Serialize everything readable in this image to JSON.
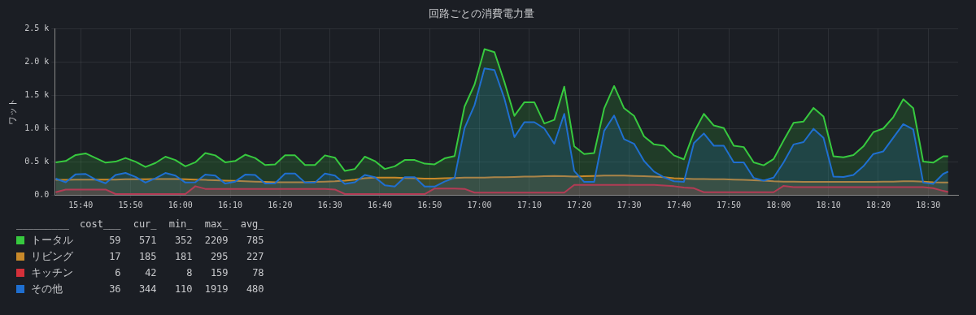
{
  "chart_data": {
    "type": "area",
    "title": "回路ごとの消費電力量",
    "ylabel": "ワット",
    "x": [
      15.5833,
      15.6167,
      15.65,
      15.6833,
      15.7167,
      15.75,
      15.7833,
      15.8167,
      15.85,
      15.8833,
      15.9167,
      15.95,
      15.9833,
      16.0167,
      16.05,
      16.0833,
      16.1167,
      16.15,
      16.1833,
      16.2167,
      16.25,
      16.2833,
      16.3167,
      16.35,
      16.3833,
      16.4167,
      16.45,
      16.4833,
      16.5167,
      16.55,
      16.5833,
      16.6167,
      16.65,
      16.6833,
      16.7167,
      16.75,
      16.7833,
      16.8167,
      16.85,
      16.8833,
      16.9167,
      16.95,
      16.9833,
      17.0167,
      17.05,
      17.0833,
      17.1167,
      17.15,
      17.1833,
      17.2167,
      17.25,
      17.2833,
      17.3167,
      17.35,
      17.3833,
      17.4167,
      17.45,
      17.4833,
      17.5167,
      17.55,
      17.5833,
      17.6167,
      17.65,
      17.6833,
      17.7167,
      17.75,
      17.7833,
      17.8167,
      17.85,
      17.8833,
      17.9167,
      17.95,
      17.9833,
      18.0167,
      18.05,
      18.0833,
      18.1167,
      18.15,
      18.1833,
      18.2167,
      18.25,
      18.2833,
      18.3167,
      18.35,
      18.3833,
      18.4167,
      18.45,
      18.4833,
      18.5167,
      18.55,
      18.5667
    ],
    "series": [
      {
        "name": "トータル",
        "color": "#37c93f",
        "values": [
          490,
          510,
          600,
          625,
          555,
          485,
          500,
          555,
          500,
          420,
          480,
          575,
          525,
          430,
          490,
          630,
          595,
          490,
          510,
          605,
          555,
          450,
          460,
          595,
          595,
          450,
          450,
          595,
          560,
          360,
          390,
          575,
          510,
          390,
          430,
          525,
          525,
          470,
          460,
          550,
          585,
          1330,
          1660,
          2195,
          2150,
          1700,
          1190,
          1395,
          1395,
          1075,
          1130,
          1630,
          730,
          615,
          630,
          1300,
          1640,
          1305,
          1190,
          880,
          760,
          740,
          595,
          535,
          940,
          1220,
          1045,
          1005,
          740,
          720,
          490,
          445,
          540,
          820,
          1085,
          1105,
          1310,
          1180,
          580,
          565,
          600,
          730,
          945,
          1000,
          1170,
          1440,
          1305,
          500,
          485,
          580,
          580
        ]
      },
      {
        "name": "リビング",
        "color": "#c8892a",
        "values": [
          225,
          225,
          230,
          230,
          230,
          230,
          230,
          235,
          235,
          235,
          240,
          240,
          240,
          235,
          230,
          225,
          220,
          215,
          210,
          205,
          200,
          195,
          190,
          190,
          190,
          190,
          195,
          200,
          205,
          215,
          230,
          250,
          260,
          260,
          260,
          255,
          250,
          245,
          245,
          250,
          255,
          260,
          260,
          260,
          265,
          265,
          270,
          275,
          275,
          280,
          285,
          280,
          275,
          280,
          285,
          290,
          290,
          290,
          285,
          280,
          275,
          265,
          250,
          245,
          240,
          240,
          235,
          235,
          230,
          225,
          220,
          215,
          205,
          200,
          200,
          195,
          195,
          195,
          195,
          195,
          195,
          195,
          195,
          200,
          200,
          205,
          205,
          200,
          190,
          185,
          185
        ]
      },
      {
        "name": "キッチン",
        "color": "#d4303a",
        "values": [
          40,
          80,
          80,
          80,
          80,
          80,
          12,
          12,
          12,
          12,
          12,
          12,
          12,
          12,
          130,
          90,
          90,
          90,
          90,
          90,
          90,
          90,
          90,
          90,
          90,
          90,
          90,
          90,
          80,
          12,
          12,
          12,
          12,
          12,
          12,
          12,
          12,
          12,
          95,
          95,
          95,
          90,
          33,
          33,
          33,
          33,
          33,
          33,
          33,
          33,
          33,
          33,
          150,
          150,
          150,
          150,
          150,
          150,
          150,
          150,
          150,
          140,
          130,
          110,
          100,
          40,
          40,
          40,
          40,
          40,
          40,
          40,
          40,
          135,
          115,
          115,
          115,
          115,
          115,
          115,
          115,
          115,
          115,
          115,
          115,
          115,
          115,
          115,
          100,
          60,
          42
        ]
      },
      {
        "name": "その他",
        "color": "#1f6fd0",
        "values": [
          245,
          190,
          310,
          315,
          230,
          175,
          300,
          330,
          270,
          185,
          250,
          330,
          290,
          185,
          190,
          305,
          290,
          170,
          200,
          305,
          300,
          170,
          175,
          320,
          320,
          185,
          185,
          320,
          290,
          165,
          190,
          300,
          265,
          145,
          125,
          265,
          265,
          125,
          125,
          200,
          255,
          1005,
          1350,
          1905,
          1880,
          1450,
          870,
          1095,
          1095,
          1000,
          770,
          1220,
          360,
          195,
          195,
          965,
          1195,
          840,
          770,
          510,
          350,
          265,
          205,
          195,
          780,
          925,
          740,
          740,
          490,
          490,
          255,
          215,
          260,
          490,
          760,
          795,
          995,
          860,
          275,
          270,
          300,
          430,
          615,
          655,
          860,
          1065,
          985,
          185,
          165,
          315,
          350
        ]
      }
    ],
    "xlim": [
      15.58,
      18.6
    ],
    "xticks": [
      {
        "value": 15.6667,
        "label": "15:40"
      },
      {
        "value": 15.8333,
        "label": "15:50"
      },
      {
        "value": 16,
        "label": "16:00"
      },
      {
        "value": 16.1667,
        "label": "16:10"
      },
      {
        "value": 16.3333,
        "label": "16:20"
      },
      {
        "value": 16.5,
        "label": "16:30"
      },
      {
        "value": 16.6667,
        "label": "16:40"
      },
      {
        "value": 16.8333,
        "label": "16:50"
      },
      {
        "value": 17,
        "label": "17:00"
      },
      {
        "value": 17.1667,
        "label": "17:10"
      },
      {
        "value": 17.3333,
        "label": "17:20"
      },
      {
        "value": 17.5,
        "label": "17:30"
      },
      {
        "value": 17.6667,
        "label": "17:40"
      },
      {
        "value": 17.8333,
        "label": "17:50"
      },
      {
        "value": 18,
        "label": "18:00"
      },
      {
        "value": 18.1667,
        "label": "18:10"
      },
      {
        "value": 18.3333,
        "label": "18:20"
      },
      {
        "value": 18.5,
        "label": "18:30"
      }
    ],
    "ylim": [
      0,
      2500
    ],
    "yticks": [
      {
        "value": 0,
        "label": "0.0"
      },
      {
        "value": 500,
        "label": "0.5 k"
      },
      {
        "value": 1000,
        "label": "1.0 k"
      },
      {
        "value": 1500,
        "label": "1.5 k"
      },
      {
        "value": 2000,
        "label": "2.0 k"
      },
      {
        "value": 2500,
        "label": "2.5 k"
      }
    ],
    "grid": true,
    "legend": "bottom left",
    "annotations": [
      "_________ cost___ cur_ min_ max_ avg_",
      "59 571 352 2209 785",
      "17 185 181 295 227",
      "6 42 8 159 78",
      "36 344 110 1919 480"
    ]
  }
}
